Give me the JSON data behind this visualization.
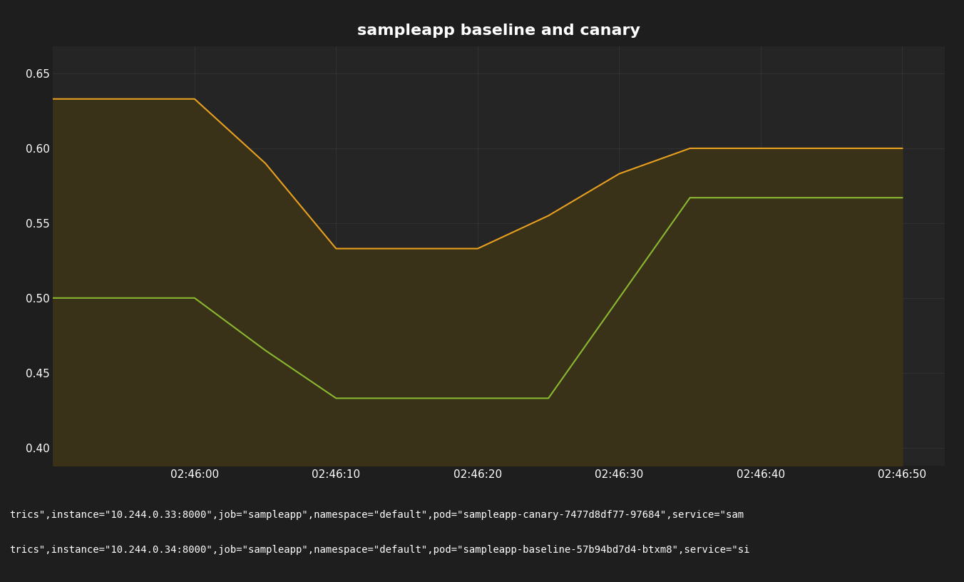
{
  "title": "sampleapp baseline and canary",
  "background_color": "#1e1e1e",
  "plot_bg_color": "#252525",
  "fill_color": "#3a3218",
  "grid_color": "#444444",
  "text_color": "#ffffff",
  "x_labels": [
    "02:46:00",
    "02:46:10",
    "02:46:20",
    "02:46:30",
    "02:46:40",
    "02:46:50"
  ],
  "x_tick_positions": [
    10,
    20,
    30,
    40,
    50,
    60
  ],
  "canary_x": [
    0,
    10,
    15,
    20,
    30,
    35,
    40,
    45,
    50,
    60
  ],
  "canary_y": [
    0.633,
    0.633,
    0.59,
    0.533,
    0.533,
    0.555,
    0.583,
    0.6,
    0.6,
    0.6
  ],
  "baseline_x": [
    0,
    10,
    15,
    20,
    30,
    35,
    40,
    45,
    50,
    60
  ],
  "baseline_y": [
    0.5,
    0.5,
    0.465,
    0.433,
    0.433,
    0.433,
    0.5,
    0.567,
    0.567,
    0.567
  ],
  "canary_color": "#e8a020",
  "baseline_color": "#8ab830",
  "ylim": [
    0.388,
    0.668
  ],
  "yticks": [
    0.4,
    0.45,
    0.5,
    0.55,
    0.6,
    0.65
  ],
  "xlim": [
    0,
    63
  ],
  "legend_line1": "trics\",instance=\"10.244.0.33:8000\",job=\"sampleapp\",namespace=\"default\",pod=\"sampleapp-canary-7477d8df77-97684\",service=\"sam",
  "legend_line2": "trics\",instance=\"10.244.0.34:8000\",job=\"sampleapp\",namespace=\"default\",pod=\"sampleapp-baseline-57b94bd7d4-btxm8\",service=\"si",
  "line_width": 1.5
}
